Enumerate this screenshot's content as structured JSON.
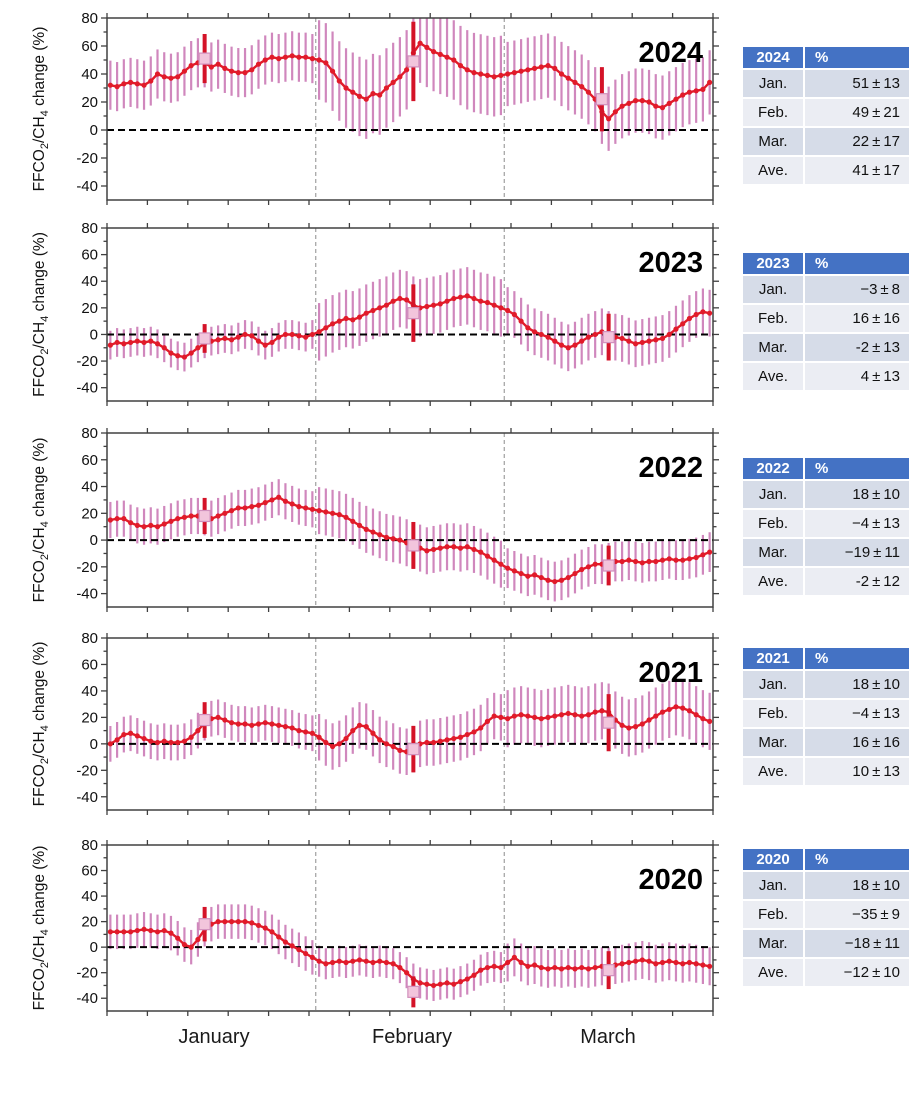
{
  "y_axis": {
    "label_text": "FFCO2/CH4 change (%)",
    "label_segments": [
      {
        "t": "FFCO"
      },
      {
        "t": "2",
        "sub": true
      },
      {
        "t": "/CH"
      },
      {
        "t": "4",
        "sub": true
      },
      {
        "t": " change (%)"
      }
    ],
    "ticks": [
      80,
      60,
      40,
      20,
      0,
      -20,
      -40
    ],
    "range": [
      -50,
      80
    ]
  },
  "x_axis": {
    "month_labels": [
      "January",
      "February",
      "March"
    ],
    "month_boundary_days": [
      31,
      59
    ],
    "n_days": 90
  },
  "colors": {
    "line_red": "#e11b2a",
    "error_bar_plum": "#c873b2",
    "monthly_square_fill": "#f2c5dc",
    "monthly_square_stroke": "#d191bd",
    "monthly_errorbar_red": "#d41328",
    "zero_line": "#000000",
    "month_divider": "#a0a0a0",
    "frame": "#404040",
    "table_header_bg": "#4472c4",
    "table_header_text": "#ffffff",
    "table_row_dark": "#d6dce8",
    "table_row_light": "#ebedf3"
  },
  "chart_data": [
    {
      "type": "line",
      "title": "2024",
      "ylabel": "FFCO2/CH4 change (%)",
      "ylim": [
        -50,
        80
      ],
      "yticks": [
        80,
        60,
        40,
        20,
        0,
        -20,
        -40
      ],
      "x_unit": "day of year (Jan 1 - Mar 31)",
      "zero_reference_line": 0,
      "month_boundary_days": [
        31,
        59
      ],
      "daily_values_pct": [
        32,
        31,
        33,
        34,
        33,
        32,
        35,
        40,
        38,
        37,
        38,
        42,
        46,
        48,
        48,
        45,
        47,
        44,
        42,
        41,
        41,
        43,
        47,
        50,
        52,
        51,
        52,
        53,
        52,
        52,
        51,
        50,
        48,
        42,
        35,
        30,
        27,
        24,
        22,
        26,
        25,
        30,
        34,
        38,
        43,
        55,
        62,
        59,
        56,
        54,
        52,
        50,
        46,
        43,
        41,
        40,
        39,
        38,
        39,
        40,
        41,
        42,
        43,
        44,
        45,
        46,
        44,
        40,
        37,
        34,
        31,
        27,
        22,
        13,
        8,
        13,
        17,
        19,
        21,
        21,
        20,
        17,
        16,
        19,
        22,
        25,
        27,
        28,
        29,
        34
      ],
      "error_bar_pct_by_month": {
        "Jan": 13,
        "Feb": 21,
        "Mar": 17
      },
      "monthly_means": [
        {
          "month": "Jan",
          "day": 15,
          "mean": 51,
          "sd": 13
        },
        {
          "month": "Feb",
          "day": 46,
          "mean": 49,
          "sd": 21
        },
        {
          "month": "Mar",
          "day": 74,
          "mean": 22,
          "sd": 17
        }
      ],
      "average": {
        "mean": 41,
        "sd": 17
      }
    },
    {
      "type": "line",
      "title": "2023",
      "ylabel": "FFCO2/CH4 change (%)",
      "ylim": [
        -50,
        80
      ],
      "yticks": [
        80,
        60,
        40,
        20,
        0,
        -20,
        -40
      ],
      "x_unit": "day of year (Jan 1 - Mar 31)",
      "zero_reference_line": 0,
      "month_boundary_days": [
        31,
        59
      ],
      "daily_values_pct": [
        -8,
        -6,
        -7,
        -6,
        -5,
        -6,
        -5,
        -7,
        -10,
        -14,
        -16,
        -17,
        -14,
        -10,
        -7,
        -5,
        -4,
        -3,
        -4,
        -2,
        0,
        -1,
        -5,
        -8,
        -6,
        -2,
        0,
        0,
        -1,
        -2,
        0,
        2,
        5,
        8,
        10,
        12,
        11,
        13,
        16,
        18,
        20,
        22,
        25,
        27,
        26,
        22,
        20,
        21,
        22,
        23,
        25,
        27,
        28,
        29,
        27,
        25,
        24,
        22,
        20,
        18,
        15,
        10,
        5,
        2,
        0,
        -2,
        -5,
        -8,
        -10,
        -8,
        -5,
        -2,
        0,
        2,
        0,
        -2,
        -3,
        -5,
        -7,
        -6,
        -5,
        -4,
        -3,
        0,
        4,
        8,
        12,
        15,
        17,
        16
      ],
      "error_bar_pct_by_month": {
        "Jan": 8,
        "Feb": 16,
        "Mar": 13
      },
      "monthly_means": [
        {
          "month": "Jan",
          "day": 15,
          "mean": -3,
          "sd": 8
        },
        {
          "month": "Feb",
          "day": 46,
          "mean": 16,
          "sd": 16
        },
        {
          "month": "Mar",
          "day": 75,
          "mean": -2,
          "sd": 13
        }
      ],
      "average": {
        "mean": 4,
        "sd": 13
      }
    },
    {
      "type": "line",
      "title": "2022",
      "ylabel": "FFCO2/CH4 change (%)",
      "ylim": [
        -50,
        80
      ],
      "yticks": [
        80,
        60,
        40,
        20,
        0,
        -20,
        -40
      ],
      "x_unit": "day of year (Jan 1 - Mar 31)",
      "zero_reference_line": 0,
      "month_boundary_days": [
        31,
        59
      ],
      "daily_values_pct": [
        15,
        16,
        16,
        13,
        11,
        10,
        11,
        10,
        12,
        14,
        16,
        17,
        18,
        18,
        17,
        16,
        18,
        20,
        22,
        24,
        24,
        25,
        26,
        28,
        30,
        32,
        29,
        27,
        25,
        24,
        23,
        22,
        21,
        20,
        19,
        17,
        14,
        11,
        8,
        6,
        4,
        2,
        1,
        0,
        -2,
        -4,
        -6,
        -8,
        -7,
        -6,
        -5,
        -5,
        -6,
        -5,
        -7,
        -9,
        -12,
        -15,
        -18,
        -21,
        -23,
        -25,
        -27,
        -26,
        -28,
        -30,
        -31,
        -30,
        -28,
        -25,
        -22,
        -20,
        -18,
        -18,
        -17,
        -16,
        -16,
        -15,
        -16,
        -17,
        -16,
        -16,
        -15,
        -14,
        -15,
        -15,
        -14,
        -13,
        -11,
        -9
      ],
      "error_bar_pct_by_month": {
        "Jan": 10,
        "Feb": 13,
        "Mar": 11
      },
      "monthly_means": [
        {
          "month": "Jan",
          "day": 15,
          "mean": 18,
          "sd": 10
        },
        {
          "month": "Feb",
          "day": 46,
          "mean": -4,
          "sd": 13
        },
        {
          "month": "Mar",
          "day": 75,
          "mean": -19,
          "sd": 11
        }
      ],
      "average": {
        "mean": -2,
        "sd": 12
      }
    },
    {
      "type": "line",
      "title": "2021",
      "ylabel": "FFCO2/CH4 change (%)",
      "ylim": [
        -50,
        80
      ],
      "yticks": [
        80,
        60,
        40,
        20,
        0,
        -20,
        -40
      ],
      "x_unit": "day of year (Jan 1 - Mar 31)",
      "zero_reference_line": 0,
      "month_boundary_days": [
        31,
        59
      ],
      "daily_values_pct": [
        0,
        3,
        7,
        8,
        6,
        4,
        2,
        1,
        2,
        1,
        1,
        2,
        5,
        10,
        16,
        19,
        20,
        18,
        16,
        15,
        15,
        14,
        15,
        16,
        15,
        14,
        13,
        12,
        10,
        9,
        8,
        5,
        1,
        -2,
        0,
        4,
        10,
        14,
        13,
        8,
        3,
        0,
        -2,
        -5,
        -6,
        -4,
        0,
        1,
        1,
        2,
        3,
        4,
        5,
        7,
        9,
        12,
        17,
        21,
        20,
        19,
        21,
        22,
        21,
        20,
        19,
        20,
        21,
        22,
        23,
        22,
        21,
        22,
        24,
        25,
        24,
        18,
        14,
        12,
        13,
        15,
        18,
        21,
        24,
        26,
        28,
        27,
        25,
        22,
        19,
        17
      ],
      "error_bar_pct_by_month": {
        "Jan": 10,
        "Feb": 13,
        "Mar": 16
      },
      "monthly_means": [
        {
          "month": "Jan",
          "day": 15,
          "mean": 18,
          "sd": 10
        },
        {
          "month": "Feb",
          "day": 46,
          "mean": -4,
          "sd": 13
        },
        {
          "month": "Mar",
          "day": 75,
          "mean": 16,
          "sd": 16
        }
      ],
      "average": {
        "mean": 10,
        "sd": 13
      }
    },
    {
      "type": "line",
      "title": "2020",
      "ylabel": "FFCO2/CH4 change (%)",
      "ylim": [
        -50,
        80
      ],
      "yticks": [
        80,
        60,
        40,
        20,
        0,
        -20,
        -40
      ],
      "x_unit": "day of year (Jan 1 - Mar 31)",
      "zero_reference_line": 0,
      "month_boundary_days": [
        31,
        59
      ],
      "daily_values_pct": [
        12,
        12,
        12,
        12,
        13,
        14,
        13,
        12,
        13,
        11,
        7,
        2,
        0,
        6,
        14,
        18,
        20,
        20,
        20,
        20,
        20,
        19,
        17,
        15,
        12,
        8,
        4,
        1,
        -2,
        -5,
        -8,
        -11,
        -13,
        -12,
        -11,
        -12,
        -11,
        -10,
        -11,
        -12,
        -11,
        -12,
        -13,
        -16,
        -20,
        -25,
        -28,
        -29,
        -30,
        -29,
        -28,
        -29,
        -27,
        -25,
        -22,
        -18,
        -16,
        -15,
        -16,
        -12,
        -8,
        -12,
        -15,
        -14,
        -16,
        -17,
        -16,
        -17,
        -16,
        -17,
        -16,
        -17,
        -16,
        -15,
        -15,
        -14,
        -13,
        -12,
        -11,
        -10,
        -11,
        -13,
        -12,
        -11,
        -12,
        -13,
        -12,
        -13,
        -14,
        -15
      ],
      "error_bar_pct_by_month": {
        "Jan": 10,
        "Feb": 9,
        "Mar": 11
      },
      "monthly_means": [
        {
          "month": "Jan",
          "day": 15,
          "mean": 18,
          "sd": 10
        },
        {
          "month": "Feb",
          "day": 46,
          "mean": -35,
          "sd": 9
        },
        {
          "month": "Mar",
          "day": 75,
          "mean": -18,
          "sd": 11
        }
      ],
      "average": {
        "mean": -12,
        "sd": 10
      }
    }
  ],
  "tables": [
    {
      "year": "2024",
      "col2_header": "%",
      "rows": [
        {
          "label": "Jan.",
          "value": "51 ± 13"
        },
        {
          "label": "Feb.",
          "value": "49 ± 21"
        },
        {
          "label": "Mar.",
          "value": "22 ± 17"
        },
        {
          "label": "Ave.",
          "value": "41 ± 17"
        }
      ]
    },
    {
      "year": "2023",
      "col2_header": "%",
      "rows": [
        {
          "label": "Jan.",
          "value": "−3 ± 8"
        },
        {
          "label": "Feb.",
          "value": "16 ± 16"
        },
        {
          "label": "Mar.",
          "value": "-2 ± 13"
        },
        {
          "label": "Ave.",
          "value": "4 ± 13"
        }
      ]
    },
    {
      "year": "2022",
      "col2_header": "%",
      "rows": [
        {
          "label": "Jan.",
          "value": "18 ± 10"
        },
        {
          "label": "Feb.",
          "value": "−4 ± 13"
        },
        {
          "label": "Mar.",
          "value": "−19 ± 11"
        },
        {
          "label": "Ave.",
          "value": "-2 ± 12"
        }
      ]
    },
    {
      "year": "2021",
      "col2_header": "%",
      "rows": [
        {
          "label": "Jan.",
          "value": "18 ± 10"
        },
        {
          "label": "Feb.",
          "value": "−4 ± 13"
        },
        {
          "label": "Mar.",
          "value": "16 ± 16"
        },
        {
          "label": "Ave.",
          "value": "10 ± 13"
        }
      ]
    },
    {
      "year": "2020",
      "col2_header": "%",
      "rows": [
        {
          "label": "Jan.",
          "value": "18 ± 10"
        },
        {
          "label": "Feb.",
          "value": "−35 ± 9"
        },
        {
          "label": "Mar.",
          "value": "−18 ± 11"
        },
        {
          "label": "Ave.",
          "value": "−12 ± 10"
        }
      ]
    }
  ]
}
